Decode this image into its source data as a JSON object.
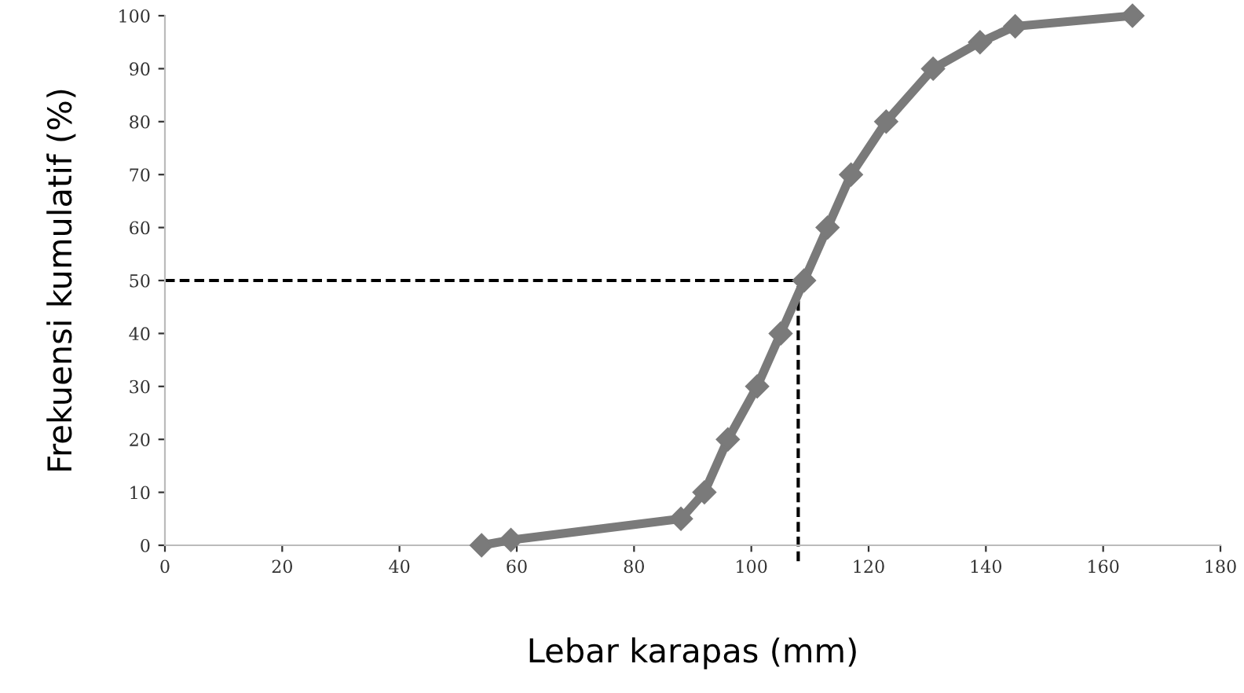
{
  "chart_data": {
    "type": "line",
    "xlabel": "Lebar karapas (mm)",
    "ylabel": "Frekuensi kumulatif (%)",
    "x": [
      54,
      59,
      88,
      92,
      96,
      101,
      105,
      109,
      113,
      117,
      123,
      131,
      139,
      145,
      165
    ],
    "series": [
      {
        "color": "#7a7a7a",
        "values": [
          0,
          1,
          5,
          10,
          20,
          30,
          40,
          50,
          60,
          70,
          80,
          90,
          95,
          98,
          100
        ]
      }
    ],
    "marker": "diamond",
    "line_style": "solid",
    "xlim": [
      0,
      180
    ],
    "xticks": [
      0,
      20,
      40,
      60,
      80,
      100,
      120,
      140,
      160,
      180
    ],
    "ylim": [
      0,
      100
    ],
    "yticks": [
      0,
      10,
      20,
      30,
      40,
      50,
      60,
      70,
      80,
      90,
      100
    ],
    "ref_lines": [
      {
        "axis": "y",
        "value": 50,
        "color": "#000000",
        "line_style": "dashed"
      },
      {
        "axis": "x",
        "value": 108,
        "color": "#000000",
        "line_style": "dashed"
      }
    ],
    "grid": false
  }
}
